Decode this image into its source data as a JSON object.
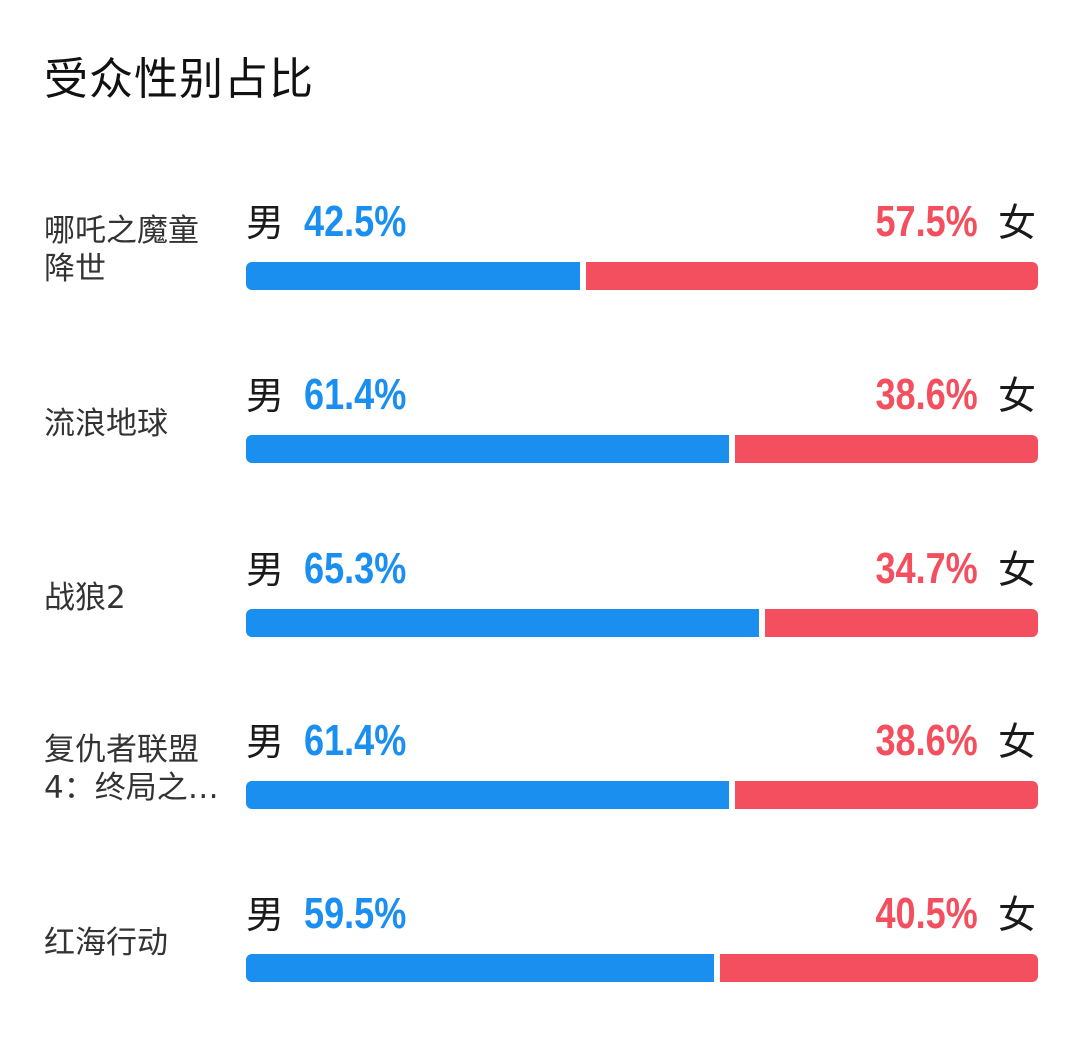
{
  "title": "受众性别占比",
  "male_label": "男",
  "female_label": "女",
  "colors": {
    "male": "#1a8ff0",
    "female": "#f44f5e"
  },
  "chart_data": {
    "type": "bar",
    "title": "受众性别占比",
    "categories": [
      "哪吒之魔童\n降世",
      "流浪地球",
      "战狼2",
      "复仇者联盟\n4：终局之…",
      "红海行动"
    ],
    "series": [
      {
        "name": "男",
        "values": [
          42.5,
          61.4,
          65.3,
          61.4,
          59.5
        ]
      },
      {
        "name": "女",
        "values": [
          57.5,
          38.6,
          34.7,
          38.6,
          40.5
        ]
      }
    ],
    "male_labels": [
      "42.5%",
      "61.4%",
      "65.3%",
      "61.4%",
      "59.5%"
    ],
    "female_labels": [
      "57.5%",
      "38.6%",
      "34.7%",
      "38.6%",
      "40.5%"
    ],
    "ylim": [
      0,
      100
    ]
  }
}
